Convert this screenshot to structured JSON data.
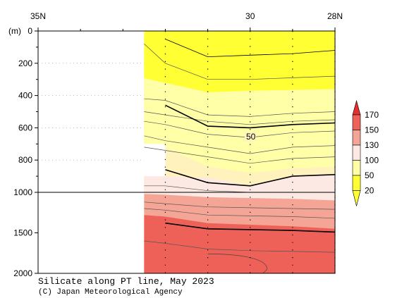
{
  "chart_data": {
    "type": "heatmap",
    "title": "Silicate along PT line, May 2023",
    "credit": "(C) Japan Meteorological Agency",
    "y_unit": "(m)",
    "x_ticks": [
      {
        "label": "35N",
        "lat": 35
      },
      {
        "label": "30",
        "lat": 30
      },
      {
        "label": "28N",
        "lat": 28
      }
    ],
    "x_range": [
      35,
      28
    ],
    "y_ticks_upper": [
      0,
      200,
      400,
      600,
      800,
      1000
    ],
    "y_ticks_lower": [
      1500,
      2000
    ],
    "y_range": [
      0,
      2000
    ],
    "station_lats": [
      32,
      31,
      30,
      29,
      28
    ],
    "contour_label": "50",
    "colorbar": {
      "labels": [
        "20",
        "50",
        "100",
        "130",
        "150",
        "170"
      ],
      "colors": [
        "#ffff33",
        "#ffffa8",
        "#fde9e4",
        "#f5a595",
        "#ee6158",
        "#e52e2e"
      ]
    },
    "bands": [
      {
        "name": "below-20",
        "color": "#ffff33"
      },
      {
        "name": "20-50",
        "color": "#ffffa8"
      },
      {
        "name": "50-100",
        "color": "#fff2bd"
      },
      {
        "name": "100-130",
        "color": "#fde9e4"
      },
      {
        "name": "130-150",
        "color": "#f5a595"
      },
      {
        "name": "150-170",
        "color": "#ee6158"
      }
    ],
    "contours": [
      {
        "depths": [
          null,
          50,
          160,
          150,
          140,
          120
        ],
        "bold": false
      },
      {
        "depths": [
          null,
          460,
          590,
          600,
          580,
          570
        ],
        "bold": true
      },
      {
        "depths": [
          null,
          860,
          940,
          960,
          900,
          890
        ],
        "bold": true
      },
      {
        "depths": [
          null,
          1380,
          1450,
          1460,
          1470,
          1490
        ],
        "bold": true
      }
    ]
  }
}
